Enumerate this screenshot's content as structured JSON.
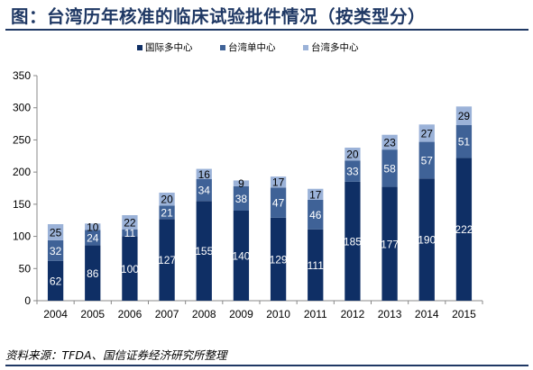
{
  "title": "图：台湾历年核准的临床试验批件情况（按类型分）",
  "source": "资料来源：TFDA、国信证券经济研究所整理",
  "chart_data": {
    "type": "bar",
    "stacked": true,
    "categories": [
      "2004",
      "2005",
      "2006",
      "2007",
      "2008",
      "2009",
      "2010",
      "2011",
      "2012",
      "2013",
      "2014",
      "2015"
    ],
    "series": [
      {
        "name": "国际多中心",
        "color": "#0f2f65",
        "values": [
          62,
          86,
          100,
          127,
          155,
          140,
          129,
          111,
          185,
          177,
          190,
          222
        ]
      },
      {
        "name": "台湾单中心",
        "color": "#3f6297",
        "values": [
          32,
          24,
          11,
          21,
          34,
          38,
          47,
          46,
          33,
          58,
          57,
          51
        ]
      },
      {
        "name": "台湾多中心",
        "color": "#9bb2d8",
        "values": [
          25,
          10,
          22,
          20,
          16,
          9,
          17,
          17,
          20,
          23,
          27,
          29
        ]
      }
    ],
    "ylim": [
      0,
      350
    ],
    "yticks": [
      0,
      50,
      100,
      150,
      200,
      250,
      300,
      350
    ],
    "legend_position": "top-center",
    "grid": false
  }
}
